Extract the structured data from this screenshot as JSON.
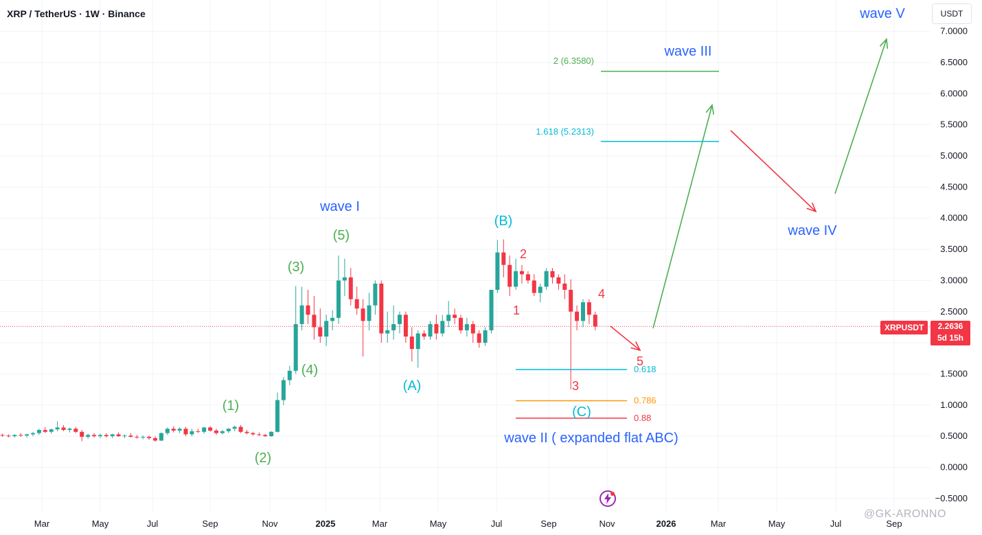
{
  "header": {
    "title": "XRP / TetherUS · 1W · Binance",
    "currency": "USDT"
  },
  "price_tag": {
    "symbol": "XRPUSDT",
    "price": "2.2636",
    "countdown": "5d 15h"
  },
  "watermark": "@GK-ARONNO",
  "colors": {
    "up": "#26a69a",
    "down": "#f23645",
    "green_label": "#4caf50",
    "blue_label": "#2962ff",
    "cyan_label": "#00bcd4",
    "red_label": "#f23645",
    "orange": "#ff9800",
    "grid": "#f0f3fa"
  },
  "chart_data": {
    "type": "candlestick",
    "title": "XRP / TetherUS · 1W · Binance",
    "y_axis": {
      "ticks": [
        "-0.5000",
        "0.0000",
        "0.5000",
        "1.0000",
        "1.5000",
        "2.0000",
        "2.5000",
        "3.0000",
        "3.5000",
        "4.0000",
        "4.5000",
        "5.0000",
        "5.5000",
        "6.0000",
        "6.5000",
        "7.0000"
      ],
      "range": [
        -0.62,
        7.4
      ]
    },
    "x_axis": {
      "ticks": [
        "Mar",
        "May",
        "Jul",
        "Sep",
        "Nov",
        "2025",
        "Mar",
        "May",
        "Jul",
        "Sep",
        "Nov",
        "2026",
        "Mar",
        "May",
        "Jul",
        "Sep"
      ],
      "bold_ticks": [
        "2025",
        "2026"
      ]
    },
    "current_price": 2.2636,
    "candles": [
      [
        0.52,
        0.54,
        0.49,
        0.51
      ],
      [
        0.51,
        0.53,
        0.48,
        0.5
      ],
      [
        0.5,
        0.53,
        0.48,
        0.52
      ],
      [
        0.52,
        0.55,
        0.49,
        0.51
      ],
      [
        0.51,
        0.54,
        0.48,
        0.53
      ],
      [
        0.53,
        0.57,
        0.5,
        0.55
      ],
      [
        0.55,
        0.62,
        0.52,
        0.6
      ],
      [
        0.6,
        0.65,
        0.55,
        0.57
      ],
      [
        0.57,
        0.62,
        0.54,
        0.61
      ],
      [
        0.61,
        0.74,
        0.58,
        0.64
      ],
      [
        0.64,
        0.68,
        0.58,
        0.6
      ],
      [
        0.6,
        0.64,
        0.56,
        0.62
      ],
      [
        0.62,
        0.65,
        0.55,
        0.57
      ],
      [
        0.57,
        0.6,
        0.42,
        0.49
      ],
      [
        0.49,
        0.54,
        0.46,
        0.52
      ],
      [
        0.52,
        0.55,
        0.48,
        0.5
      ],
      [
        0.5,
        0.54,
        0.47,
        0.52
      ],
      [
        0.52,
        0.55,
        0.48,
        0.5
      ],
      [
        0.5,
        0.54,
        0.47,
        0.53
      ],
      [
        0.53,
        0.56,
        0.49,
        0.5
      ],
      [
        0.5,
        0.53,
        0.47,
        0.51
      ],
      [
        0.51,
        0.55,
        0.48,
        0.49
      ],
      [
        0.49,
        0.52,
        0.46,
        0.48
      ],
      [
        0.48,
        0.51,
        0.45,
        0.49
      ],
      [
        0.49,
        0.51,
        0.44,
        0.47
      ],
      [
        0.47,
        0.5,
        0.41,
        0.43
      ],
      [
        0.43,
        0.56,
        0.42,
        0.55
      ],
      [
        0.55,
        0.64,
        0.52,
        0.62
      ],
      [
        0.62,
        0.66,
        0.56,
        0.59
      ],
      [
        0.59,
        0.64,
        0.55,
        0.62
      ],
      [
        0.62,
        0.65,
        0.5,
        0.53
      ],
      [
        0.53,
        0.62,
        0.5,
        0.58
      ],
      [
        0.58,
        0.62,
        0.55,
        0.57
      ],
      [
        0.57,
        0.65,
        0.54,
        0.64
      ],
      [
        0.64,
        0.66,
        0.57,
        0.59
      ],
      [
        0.59,
        0.62,
        0.52,
        0.55
      ],
      [
        0.55,
        0.6,
        0.53,
        0.58
      ],
      [
        0.58,
        0.63,
        0.55,
        0.62
      ],
      [
        0.62,
        0.67,
        0.58,
        0.65
      ],
      [
        0.65,
        0.68,
        0.55,
        0.57
      ],
      [
        0.57,
        0.6,
        0.53,
        0.55
      ],
      [
        0.55,
        0.57,
        0.51,
        0.53
      ],
      [
        0.53,
        0.56,
        0.5,
        0.52
      ],
      [
        0.52,
        0.54,
        0.49,
        0.5
      ],
      [
        0.5,
        0.58,
        0.49,
        0.57
      ],
      [
        0.57,
        1.2,
        0.56,
        1.08
      ],
      [
        1.08,
        1.45,
        1.0,
        1.4
      ],
      [
        1.4,
        1.63,
        1.32,
        1.55
      ],
      [
        1.55,
        2.91,
        1.5,
        2.3
      ],
      [
        2.3,
        2.9,
        2.2,
        2.6
      ],
      [
        2.6,
        2.85,
        2.3,
        2.45
      ],
      [
        2.45,
        2.75,
        2.05,
        2.25
      ],
      [
        2.25,
        2.55,
        2.0,
        2.1
      ],
      [
        2.1,
        2.45,
        1.95,
        2.35
      ],
      [
        2.35,
        2.52,
        2.2,
        2.4
      ],
      [
        2.4,
        3.4,
        2.3,
        3.0
      ],
      [
        3.0,
        3.35,
        2.75,
        3.05
      ],
      [
        3.05,
        3.2,
        2.6,
        2.7
      ],
      [
        2.7,
        2.9,
        2.45,
        2.55
      ],
      [
        2.55,
        2.7,
        1.78,
        2.35
      ],
      [
        2.35,
        2.8,
        2.2,
        2.6
      ],
      [
        2.6,
        3.0,
        2.45,
        2.95
      ],
      [
        2.95,
        3.0,
        2.0,
        2.15
      ],
      [
        2.15,
        2.5,
        2.0,
        2.2
      ],
      [
        2.2,
        2.6,
        2.05,
        2.3
      ],
      [
        2.3,
        2.5,
        2.15,
        2.45
      ],
      [
        2.45,
        2.5,
        2.0,
        2.1
      ],
      [
        2.1,
        2.25,
        1.7,
        1.9
      ],
      [
        1.9,
        2.2,
        1.6,
        2.15
      ],
      [
        2.15,
        2.2,
        2.05,
        2.1
      ],
      [
        2.1,
        2.35,
        2.05,
        2.3
      ],
      [
        2.3,
        2.45,
        2.05,
        2.15
      ],
      [
        2.15,
        2.45,
        2.1,
        2.35
      ],
      [
        2.35,
        2.67,
        2.25,
        2.45
      ],
      [
        2.45,
        2.55,
        2.3,
        2.4
      ],
      [
        2.4,
        2.45,
        2.15,
        2.2
      ],
      [
        2.2,
        2.4,
        2.1,
        2.3
      ],
      [
        2.3,
        2.35,
        2.0,
        2.15
      ],
      [
        2.15,
        2.2,
        1.92,
        2.0
      ],
      [
        2.0,
        2.25,
        1.95,
        2.2
      ],
      [
        2.2,
        2.8,
        2.15,
        2.85
      ],
      [
        2.85,
        3.65,
        2.8,
        3.45
      ],
      [
        3.45,
        3.66,
        3.05,
        3.25
      ],
      [
        3.25,
        3.4,
        2.75,
        2.9
      ],
      [
        2.9,
        3.35,
        2.85,
        3.15
      ],
      [
        3.15,
        3.25,
        2.95,
        3.1
      ],
      [
        3.1,
        3.15,
        2.95,
        3.0
      ],
      [
        3.0,
        3.1,
        2.75,
        2.8
      ],
      [
        2.8,
        2.95,
        2.65,
        2.9
      ],
      [
        2.9,
        3.2,
        2.85,
        3.15
      ],
      [
        3.15,
        3.2,
        2.95,
        3.05
      ],
      [
        3.05,
        3.1,
        2.85,
        2.95
      ],
      [
        2.95,
        3.1,
        2.7,
        2.85
      ],
      [
        2.85,
        3.02,
        1.25,
        2.5
      ],
      [
        2.5,
        2.6,
        2.2,
        2.35
      ],
      [
        2.35,
        2.7,
        2.25,
        2.65
      ],
      [
        2.65,
        2.7,
        2.3,
        2.45
      ],
      [
        2.45,
        2.5,
        2.2,
        2.26
      ]
    ],
    "annotations": {
      "wave_labels": [
        {
          "text": "wave I",
          "color": "blue"
        },
        {
          "text": "wave II ( expanded flat ABC)",
          "color": "blue"
        },
        {
          "text": "wave III",
          "color": "blue"
        },
        {
          "text": "wave IV",
          "color": "blue"
        },
        {
          "text": "wave V",
          "color": "blue"
        }
      ],
      "subwave_labels": [
        "(1)",
        "(2)",
        "(3)",
        "(4)",
        "(5)"
      ],
      "abc_labels": [
        "(A)",
        "(B)",
        "(C)"
      ],
      "red_labels": [
        "1",
        "2",
        "3",
        "4",
        "5"
      ],
      "fib_levels": [
        {
          "label": "0.618",
          "value": 1.57
        },
        {
          "label": "0.786",
          "value": 1.07
        },
        {
          "label": "0.88",
          "value": 0.79
        },
        {
          "label": "1.618 (5.2313)",
          "value": 5.2313
        },
        {
          "label": "2 (6.3580)",
          "value": 6.358
        }
      ]
    }
  }
}
